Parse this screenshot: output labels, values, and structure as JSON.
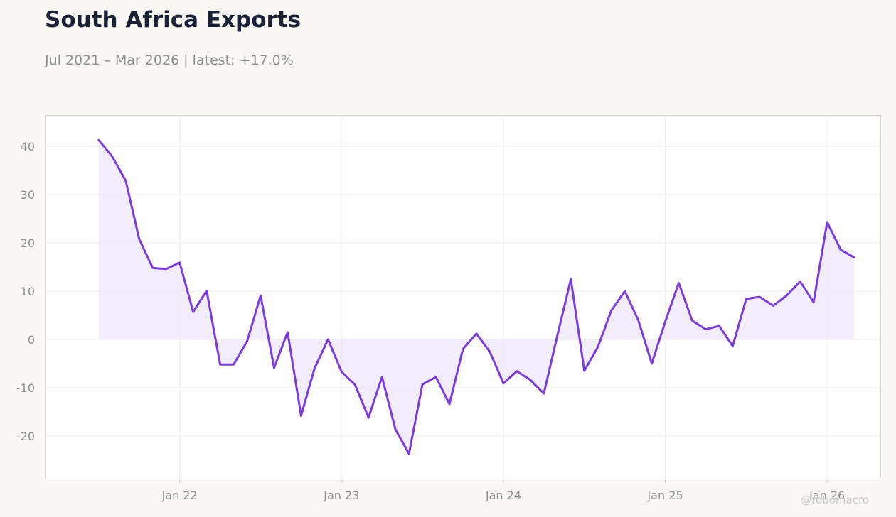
{
  "title": "South Africa Exports",
  "subtitle": "Jul 2021 – Mar 2026 | latest: +17.0%",
  "watermark": "@robomacro",
  "colors": {
    "line": "#7b3be2",
    "fill": "#ede6fb",
    "grid": "#efefef",
    "tick_text": "#8f8f8f",
    "plot_bg": "#ffffff",
    "plot_border": "#dddad2"
  },
  "chart_data": {
    "type": "area",
    "x_start": "2021-07",
    "x_frequency": "monthly",
    "ylim": [
      -29,
      46.5
    ],
    "xlim": [
      "2021-03",
      "2026-05"
    ],
    "grid": true,
    "legend": "none",
    "yticks": [
      -20,
      -10,
      0,
      10,
      20,
      30,
      40
    ],
    "xticks": [
      {
        "label": "Jan 22",
        "date": "2022-01"
      },
      {
        "label": "Jan 23",
        "date": "2023-01"
      },
      {
        "label": "Jan 24",
        "date": "2024-01"
      },
      {
        "label": "Jan 25",
        "date": "2025-01"
      },
      {
        "label": "Jan 26",
        "date": "2026-01"
      }
    ],
    "series": [
      {
        "values": [
          41.3,
          37.9,
          32.9,
          20.8,
          14.8,
          14.6,
          15.9,
          5.7,
          10.1,
          -5.2,
          -5.2,
          -0.4,
          9.1,
          -5.9,
          1.5,
          -15.8,
          -6.0,
          0.0,
          -6.7,
          -9.4,
          -16.2,
          -7.8,
          -18.7,
          -23.7,
          -9.3,
          -7.8,
          -13.4,
          -2.0,
          1.2,
          -2.6,
          -9.1,
          -6.6,
          -8.4,
          -11.2,
          0.8,
          12.5,
          -6.5,
          -1.6,
          6.0,
          10.0,
          4.0,
          -5.0,
          3.7,
          11.7,
          3.9,
          2.1,
          2.8,
          -1.4,
          8.4,
          8.8,
          7.0,
          9.1,
          12.0,
          7.7,
          24.3,
          18.6,
          17.0
        ]
      }
    ]
  }
}
